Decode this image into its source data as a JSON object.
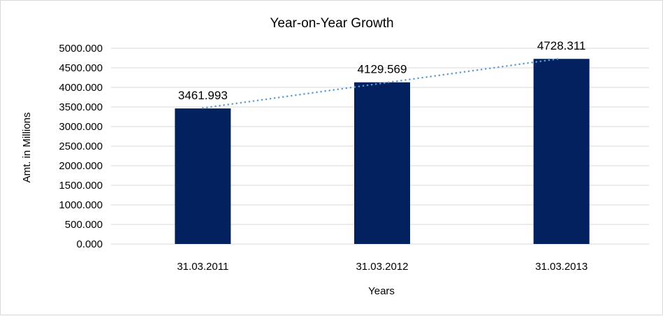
{
  "chart_data": {
    "type": "bar",
    "title": "Year-on-Year Growth",
    "xlabel": "Years",
    "ylabel": "Amt. in Millions",
    "categories": [
      "31.03.2011",
      "31.03.2012",
      "31.03.2013"
    ],
    "values": [
      3461.993,
      4129.569,
      4728.311
    ],
    "data_labels": [
      "3461.993",
      "4129.569",
      "4728.311"
    ],
    "ylim": [
      0,
      5000
    ],
    "yticks": [
      "0.000",
      "500.000",
      "1000.000",
      "1500.000",
      "2000.000",
      "2500.000",
      "3000.000",
      "3500.000",
      "4000.000",
      "4500.000",
      "5000.000"
    ],
    "grid": true,
    "trendline": "linear, dotted",
    "colors": {
      "bar": "#03215E",
      "trendline": "#5B9BD5",
      "grid": "#D9D9D9"
    }
  }
}
